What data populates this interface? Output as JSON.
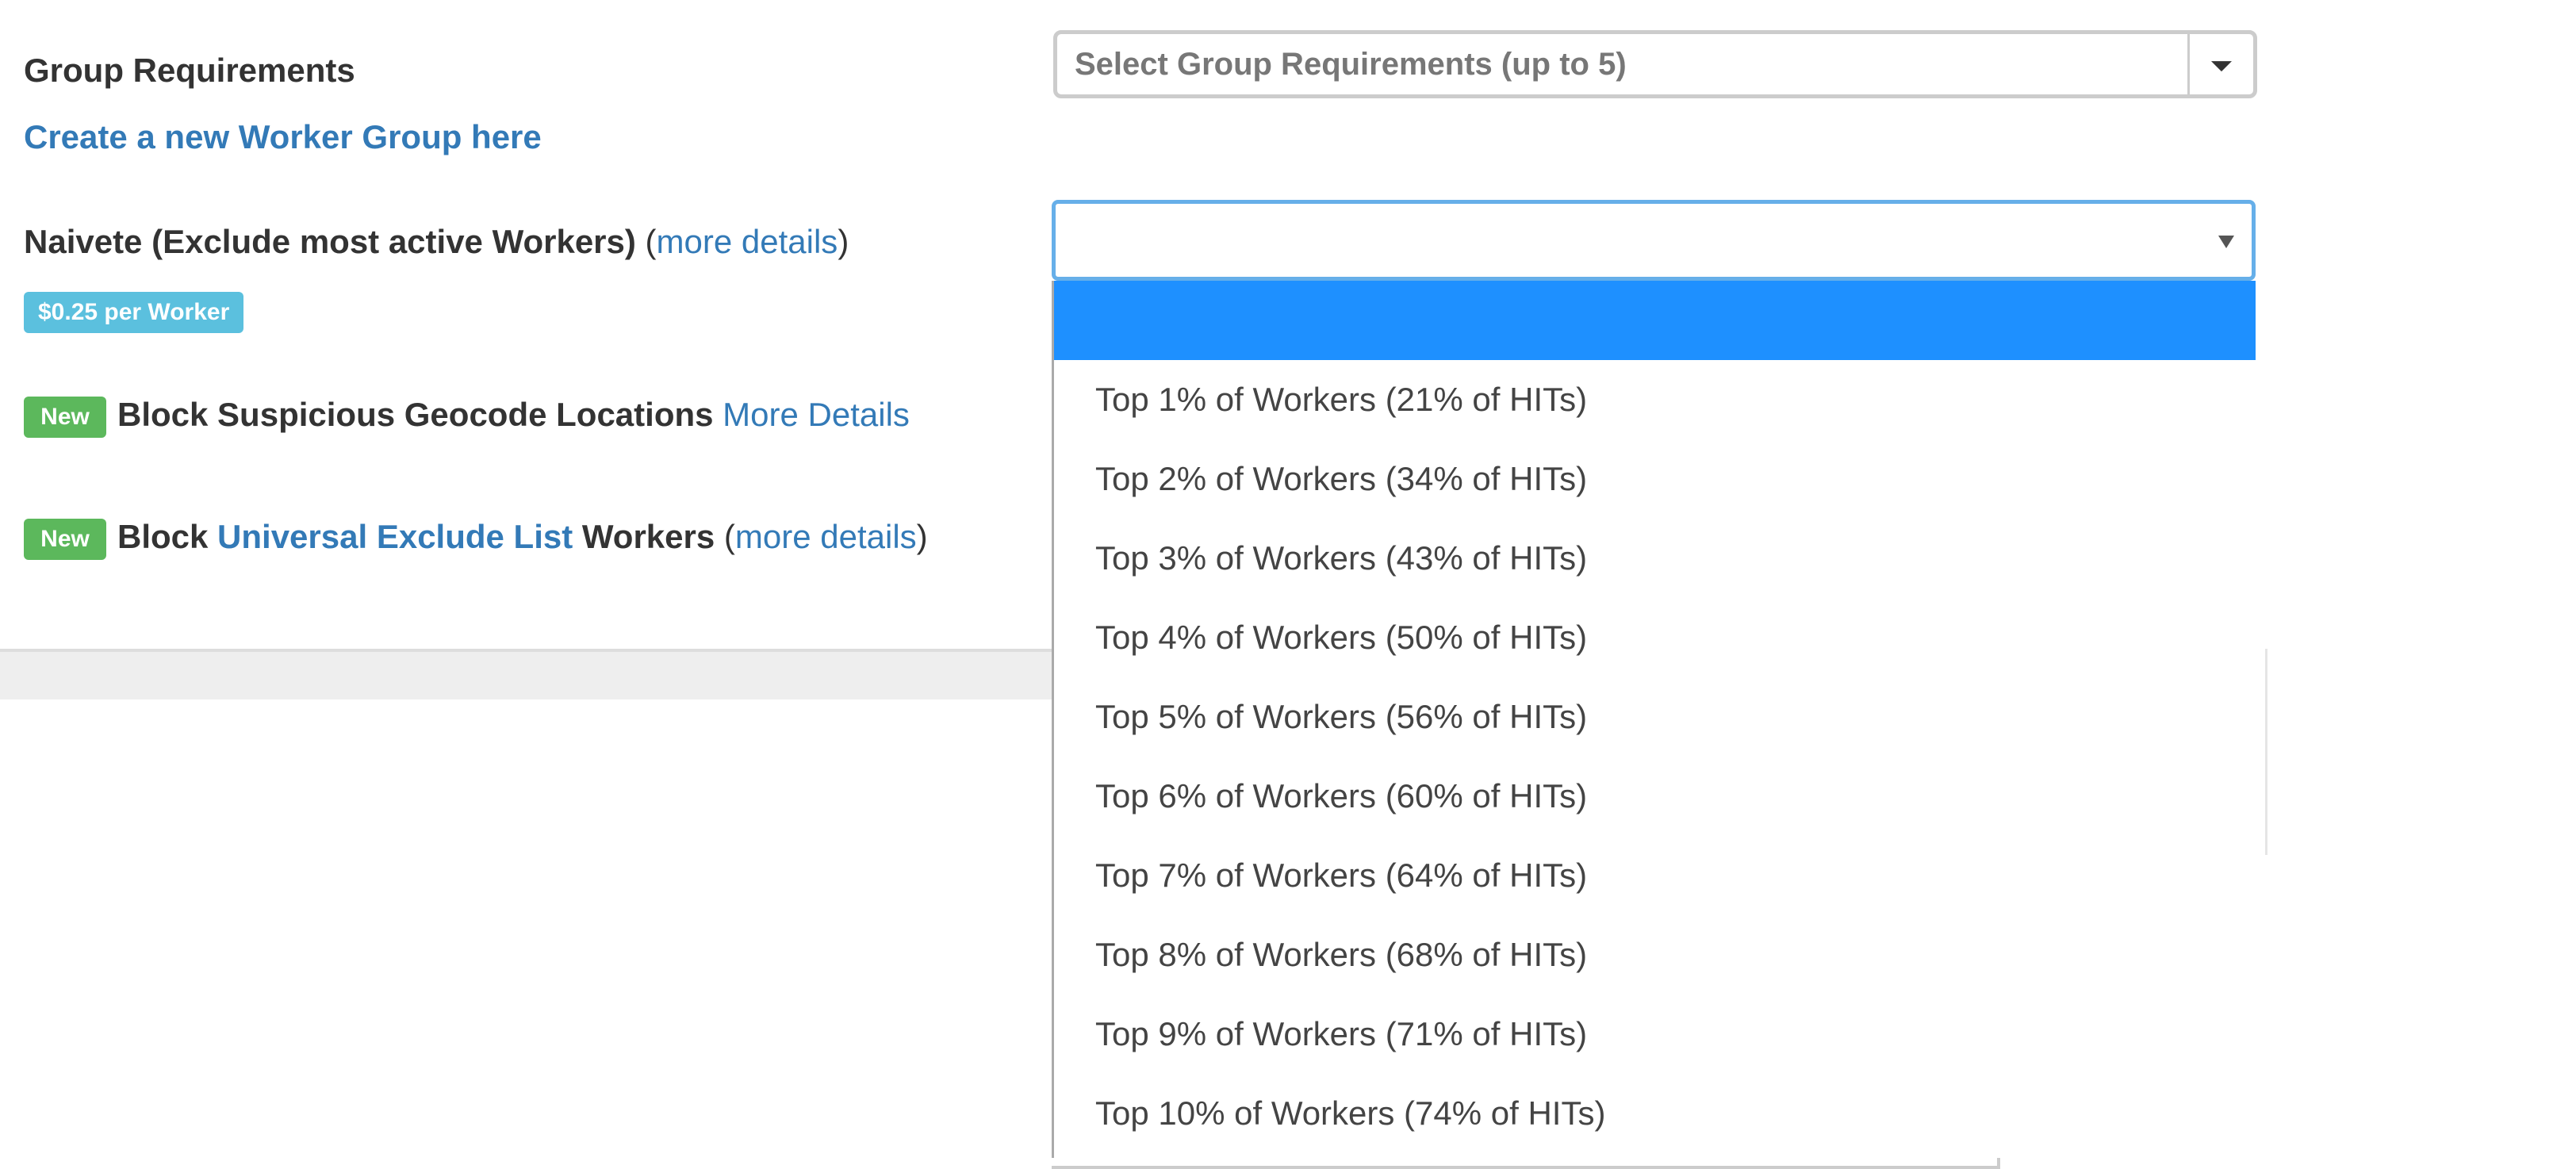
{
  "group_requirements": {
    "label": "Group Requirements",
    "create_link": "Create a new Worker Group here",
    "select_placeholder": "Select Group Requirements (up to 5)"
  },
  "naivete": {
    "label": "Naivete (Exclude most active Workers)",
    "open_paren": "(",
    "details_link": "more details",
    "close_paren": ")",
    "price_badge": "$0.25 per Worker",
    "selected_value": "",
    "options": [
      "",
      "Top 1% of Workers (21% of HITs)",
      "Top 2% of Workers (34% of HITs)",
      "Top 3% of Workers (43% of HITs)",
      "Top 4% of Workers (50% of HITs)",
      "Top 5% of Workers (56% of HITs)",
      "Top 6% of Workers (60% of HITs)",
      "Top 7% of Workers (64% of HITs)",
      "Top 8% of Workers (68% of HITs)",
      "Top 9% of Workers (71% of HITs)",
      "Top 10% of Workers (74% of HITs)"
    ]
  },
  "geocode": {
    "badge": "New",
    "label": "Block Suspicious Geocode Locations",
    "details_link": "More Details"
  },
  "universal": {
    "badge": "New",
    "label_prefix": "Block",
    "list_link": "Universal Exclude List",
    "label_suffix": "Workers",
    "open_paren": "(",
    "details_link": "more details",
    "close_paren": ")"
  },
  "colors": {
    "link": "#337ab7",
    "info_badge": "#5bc0de",
    "new_badge": "#5cb85c",
    "highlight": "#1e90ff",
    "focus_border": "#66afe9"
  }
}
